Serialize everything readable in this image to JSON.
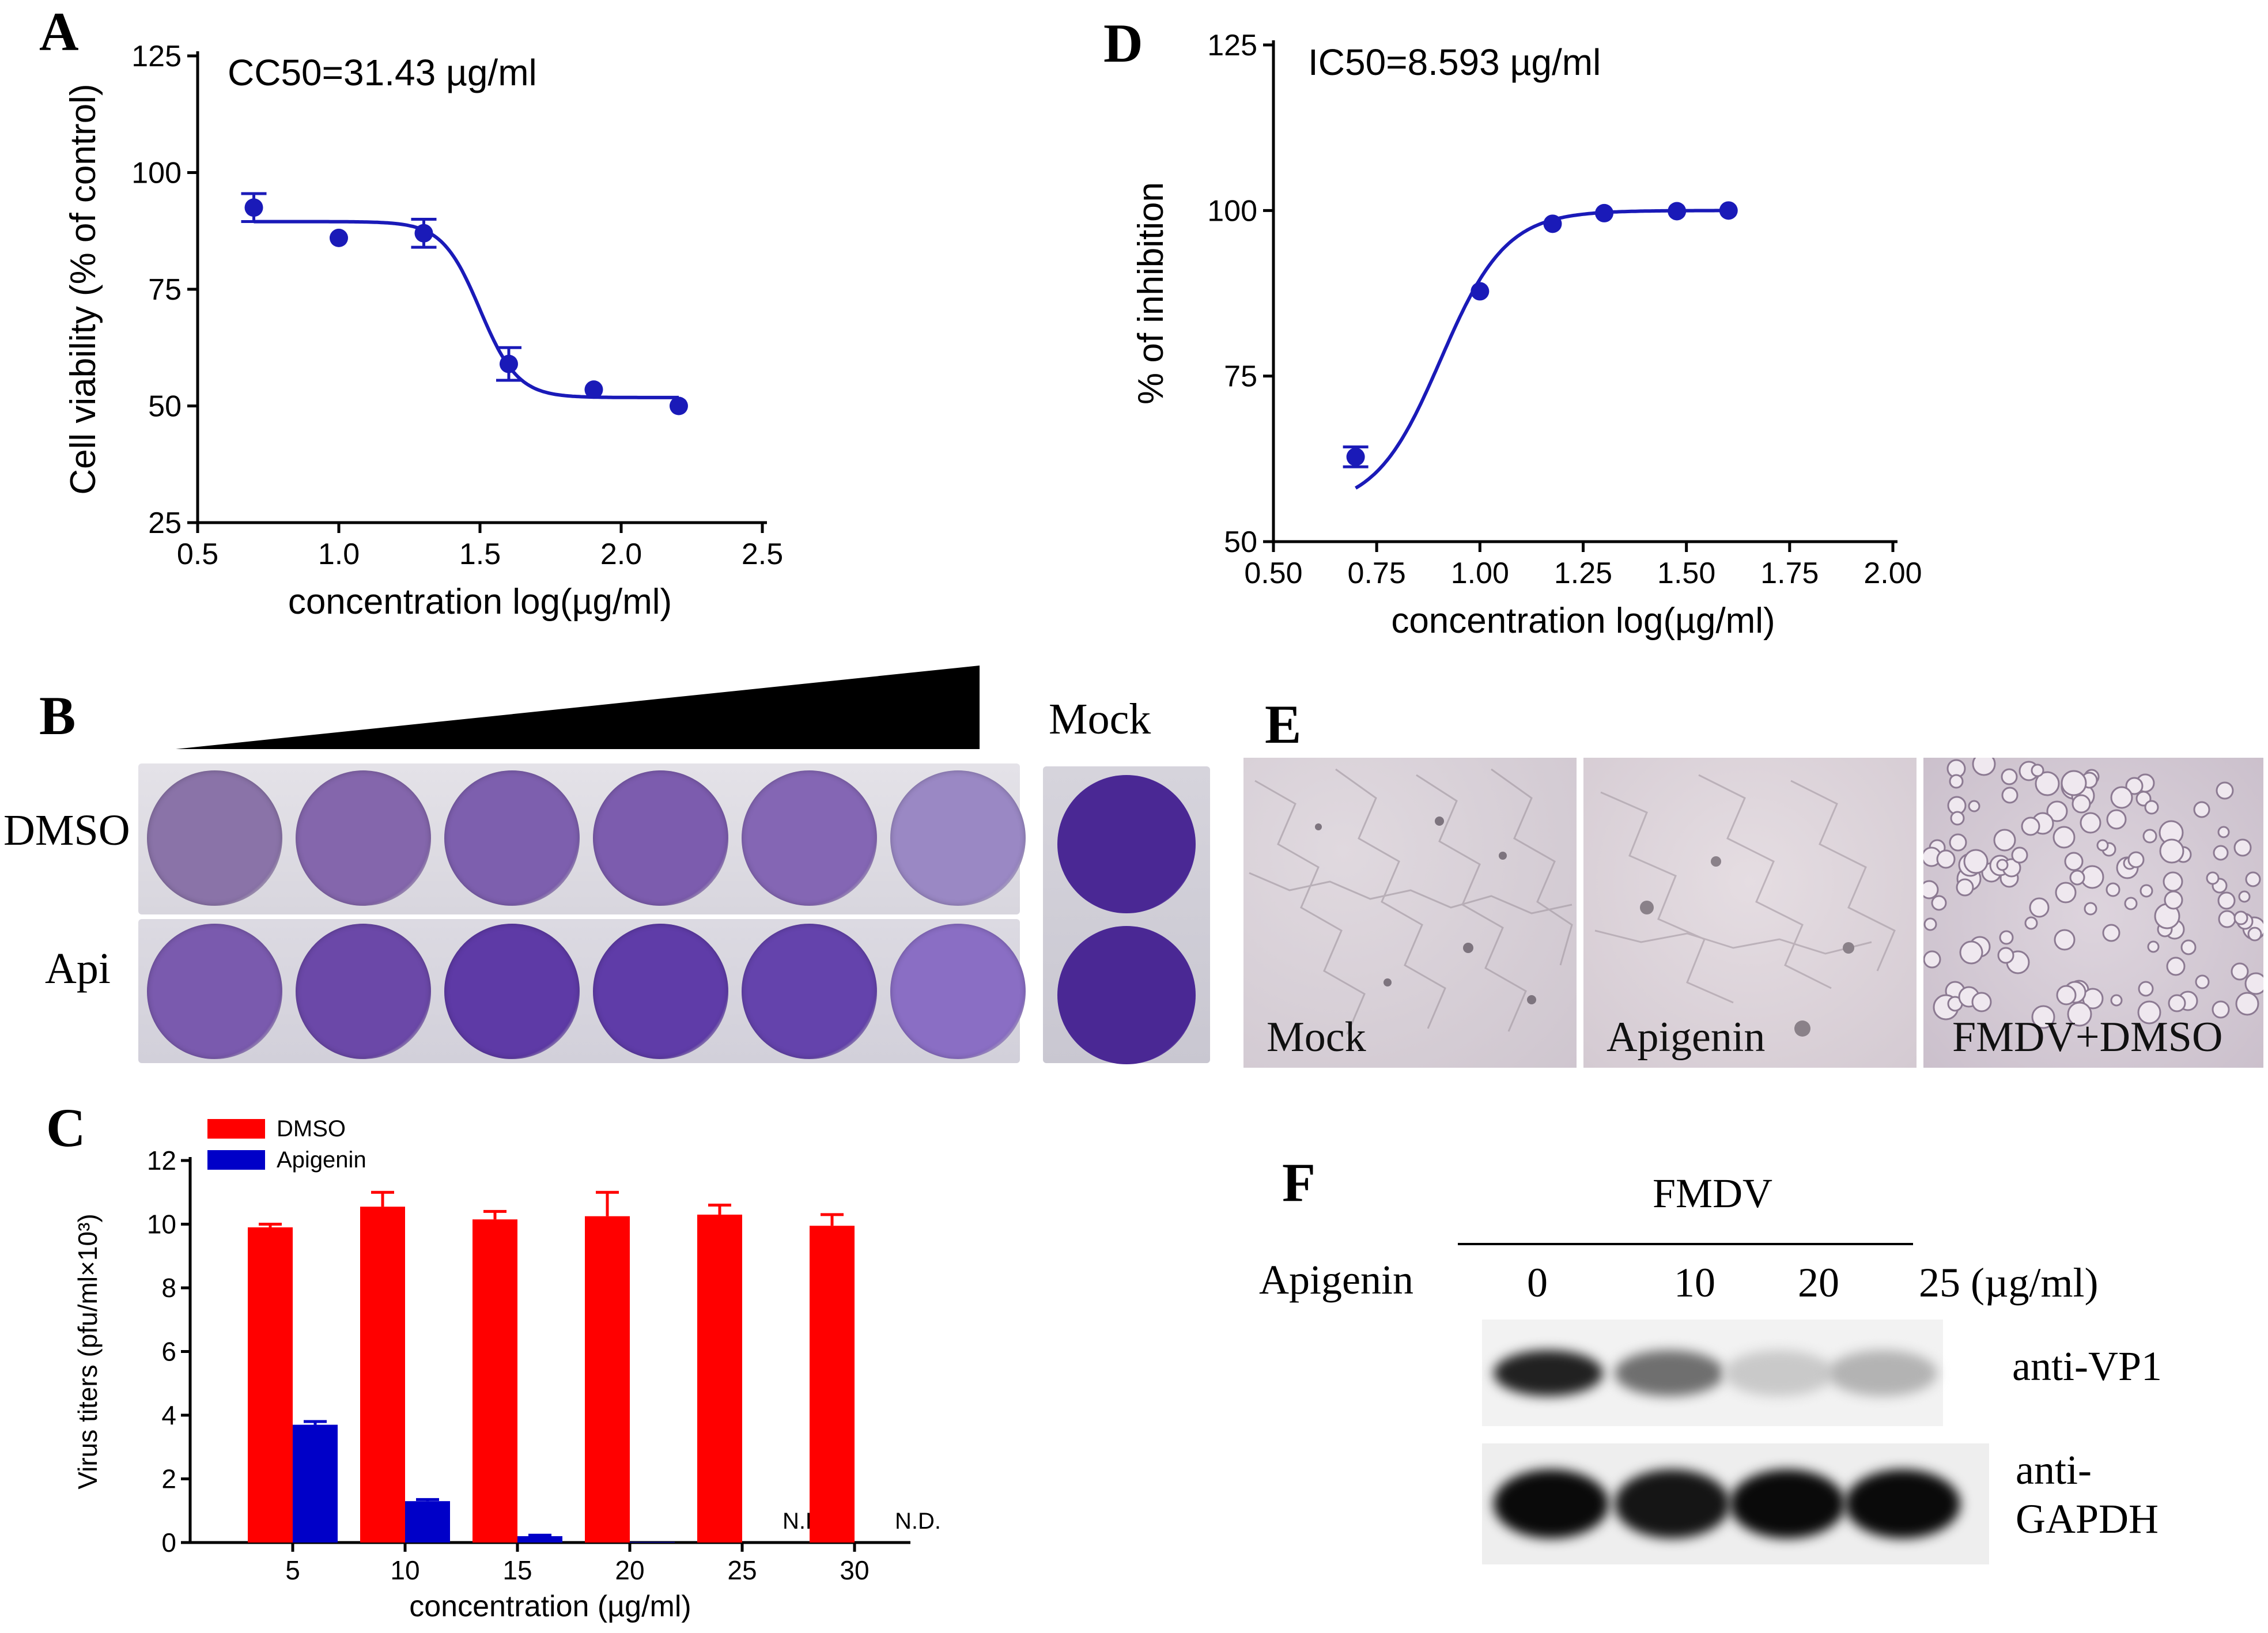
{
  "panels": {
    "A": "A",
    "B": "B",
    "C": "C",
    "D": "D",
    "E": "E",
    "F": "F"
  },
  "chart_data": [
    {
      "id": "A",
      "type": "scatter",
      "annotation": "CC50=31.43 µg/ml",
      "xlabel": "concentration log(µg/ml)",
      "ylabel": "Cell viability (% of control)",
      "xlim": [
        0.5,
        2.5
      ],
      "ylim": [
        25,
        125
      ],
      "xticks": [
        0.5,
        1.0,
        1.5,
        2.0,
        2.5
      ],
      "xtick_labels": [
        "0.5",
        "1.0",
        "1.5",
        "2.0",
        "2.5"
      ],
      "yticks": [
        25,
        50,
        75,
        100,
        125
      ],
      "ytick_labels": [
        "25",
        "50",
        "75",
        "100",
        "125"
      ],
      "points": [
        {
          "x": 0.699,
          "y": 92.5,
          "err": 3.0
        },
        {
          "x": 1.0,
          "y": 86.0,
          "err": 0
        },
        {
          "x": 1.301,
          "y": 87.0,
          "err": 3.0
        },
        {
          "x": 1.602,
          "y": 59.0,
          "err": 3.5
        },
        {
          "x": 1.903,
          "y": 53.5,
          "err": 0
        },
        {
          "x": 2.204,
          "y": 50.0,
          "err": 0
        }
      ],
      "fit": {
        "model": "sigmoid",
        "top": 89.5,
        "bottom": 51.8,
        "logEC50": 1.5,
        "hill": -6.5,
        "xrange": [
          0.699,
          2.204
        ]
      },
      "color": "#1a1ab8"
    },
    {
      "id": "D",
      "type": "scatter",
      "annotation": "IC50=8.593 µg/ml",
      "xlabel": "concentration log(µg/ml)",
      "ylabel": "% of inhibition",
      "xlim": [
        0.5,
        2.0
      ],
      "ylim": [
        50,
        125
      ],
      "xticks": [
        0.5,
        0.75,
        1.0,
        1.25,
        1.5,
        1.75,
        2.0
      ],
      "xtick_labels": [
        "0.50",
        "0.75",
        "1.00",
        "1.25",
        "1.50",
        "1.75",
        "2.00"
      ],
      "yticks": [
        50,
        75,
        100,
        125
      ],
      "ytick_labels": [
        "50",
        "75",
        "100",
        "125"
      ],
      "points": [
        {
          "x": 0.699,
          "y": 62.8,
          "err": 1.5
        },
        {
          "x": 1.0,
          "y": 87.8,
          "err": 0
        },
        {
          "x": 1.176,
          "y": 98.0,
          "err": 0
        },
        {
          "x": 1.301,
          "y": 99.6,
          "err": 0
        },
        {
          "x": 1.477,
          "y": 99.9,
          "err": 0
        },
        {
          "x": 1.602,
          "y": 100.0,
          "err": 0
        }
      ],
      "fit": {
        "model": "sigmoid",
        "top": 100.0,
        "bottom": 55.0,
        "logEC50": 0.905,
        "hill": 5.5,
        "xrange": [
          0.699,
          1.602
        ]
      },
      "color": "#1a1ab8"
    },
    {
      "id": "C",
      "type": "bar",
      "xlabel": "concentration (µg/ml)",
      "ylabel": "Virus titers (pfu/ml×10³)",
      "ylim": [
        0,
        12
      ],
      "yticks": [
        0,
        2,
        4,
        6,
        8,
        10,
        12
      ],
      "ytick_labels": [
        "0",
        "2",
        "4",
        "6",
        "8",
        "10",
        "12"
      ],
      "categories": [
        "5",
        "10",
        "15",
        "20",
        "25",
        "30"
      ],
      "series": [
        {
          "name": "DMSO",
          "color": "#ff0000",
          "values": [
            9.9,
            10.55,
            10.15,
            10.25,
            10.3,
            9.95
          ],
          "errors": [
            0.1,
            0.45,
            0.25,
            0.75,
            0.3,
            0.35
          ]
        },
        {
          "name": "Apigenin",
          "color": "#0000c8",
          "values": [
            3.7,
            1.3,
            0.2,
            0.02,
            0,
            0
          ],
          "errors": [
            0.1,
            0.05,
            0.03,
            0,
            0,
            0
          ]
        }
      ],
      "nd_label": "N.D.",
      "nd_categories": [
        "25",
        "30"
      ]
    }
  ],
  "panel_b": {
    "rows": [
      "DMSO",
      "Api"
    ],
    "mock_label": "Mock",
    "dmso_wells": [
      "#8a73a8",
      "#8466ac",
      "#7d5fae",
      "#7c5cae",
      "#8466b4",
      "#9a88c4"
    ],
    "api_wells": [
      "#7a5aae",
      "#6b48a8",
      "#5e3aa6",
      "#5f3ca8",
      "#6443ac",
      "#8a6ec4"
    ],
    "mock_wells": [
      "#4a2894",
      "#4a2894"
    ]
  },
  "panel_e": {
    "images": [
      "Mock",
      "Apigenin",
      "FMDV+DMSO"
    ]
  },
  "panel_f": {
    "title": "FMDV",
    "row_label": "Apigenin",
    "lanes": [
      "0",
      "10",
      "20",
      "25 (µg/ml)"
    ],
    "blots": [
      {
        "label": "anti-VP1",
        "intensities": [
          0.9,
          0.55,
          0.15,
          0.25
        ]
      },
      {
        "label_lines": [
          "anti-",
          "GAPDH"
        ],
        "intensities": [
          1.0,
          0.95,
          1.0,
          1.0
        ]
      }
    ]
  }
}
